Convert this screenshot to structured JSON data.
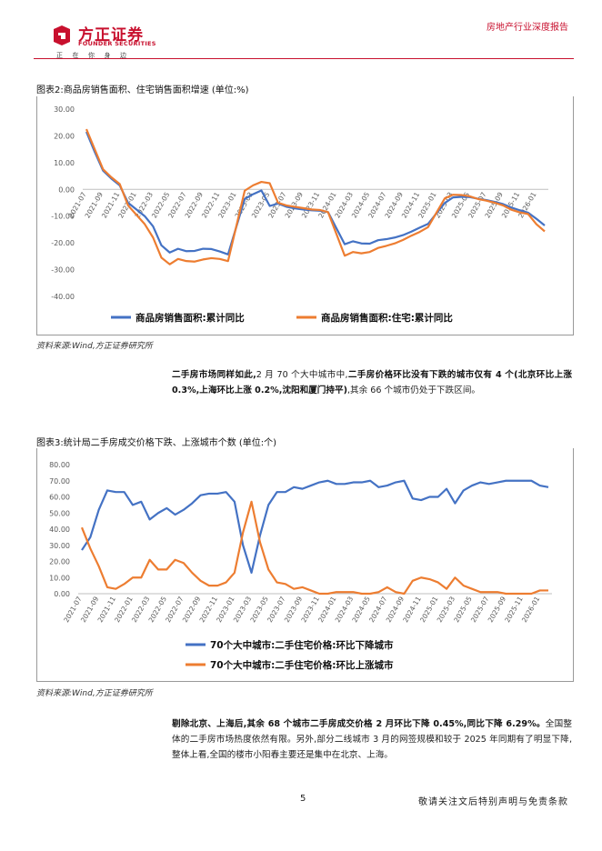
{
  "header": {
    "logo_name": "方正证券",
    "logo_en": "FOUNDER SECURITIES",
    "slogan": "正在你身边",
    "report_type": "房地产行业深度报告"
  },
  "figure2": {
    "title": "图表2:商品房销售面积、住宅销售面积增速 (单位:%)",
    "source": "资料来源:Wind,方正证券研究所"
  },
  "para1": {
    "bold1": "二手房市场同样如此,",
    "text1": "2 月 70 个大中城市中,",
    "bold2": "二手房价格环比没有下跌的城市仅有 4 个(北京环比上涨 0.3%,上海环比上涨 0.2%,沈阳和厦门持平)",
    "text2": ",其余 66 个城市仍处于下跌区间。"
  },
  "figure3": {
    "title": "图表3:统计局二手房成交价格下跌、上涨城市个数 (单位:个)",
    "source": "资料来源:Wind,方正证券研究所"
  },
  "para2": {
    "bold1": "剔除北京、上海后,其余 68 个城市二手房成交价格 2 月环比下降 0.45%,同比下降 6.29%。",
    "text1": "全国整体的二手房市场热度依然有限。另外,部分二线城市 3 月的网签规模和较于 2025 年同期有了明显下降,整体上看,全国的楼市小阳春主要还是集中在北京、上海。"
  },
  "footer": {
    "page_number": "5",
    "disclaimer": "敬请关注文后特别声明与免责条款"
  },
  "chart_data": [
    {
      "type": "line",
      "title": "商品房销售面积、住宅销售面积增速 (单位:%)",
      "xlabel": "",
      "ylabel": "",
      "ylim": [
        -40,
        30
      ],
      "yticks": [
        "30.00",
        "20.00",
        "10.00",
        "0.00",
        "-10.00",
        "-20.00",
        "-30.00",
        "-40.00"
      ],
      "categories": [
        "2021-07",
        "2021-08",
        "2021-09",
        "2021-10",
        "2021-11",
        "2021-12",
        "2022-01",
        "2022-02",
        "2022-03",
        "2022-04",
        "2022-05",
        "2022-06",
        "2022-07",
        "2022-08",
        "2022-09",
        "2022-10",
        "2022-11",
        "2022-12",
        "2023-01",
        "2023-02",
        "2023-03",
        "2023-04",
        "2023-05",
        "2023-06",
        "2023-07",
        "2023-08",
        "2023-09",
        "2023-10",
        "2023-11",
        "2023-12",
        "2024-01",
        "2024-02",
        "2024-03",
        "2024-04",
        "2024-05",
        "2024-06",
        "2024-07",
        "2024-08",
        "2024-09",
        "2024-10",
        "2024-11",
        "2024-12",
        "2025-01",
        "2025-02",
        "2025-03",
        "2025-04",
        "2025-05",
        "2025-06",
        "2025-07",
        "2025-08",
        "2025-09",
        "2025-10",
        "2025-11",
        "2025-12",
        "2026-01",
        "2026-02"
      ],
      "x_tick_labels": [
        "2021-07",
        "2021-09",
        "2021-11",
        "2022-01",
        "2022-03",
        "2022-05",
        "2022-07",
        "2022-09",
        "2022-11",
        "2023-01",
        "2023-03",
        "2023-05",
        "2023-07",
        "2023-09",
        "2023-11",
        "2024-01",
        "2024-03",
        "2024-05",
        "2024-07",
        "2024-09",
        "2024-11",
        "2025-01",
        "2025-03",
        "2025-05",
        "2025-07",
        "2025-09",
        "2025-11",
        "2026-01"
      ],
      "series": [
        {
          "name": "商品房销售面积:累计同比",
          "color": "#4472c4",
          "values": [
            21.5,
            14.0,
            7.0,
            4.0,
            1.5,
            -5.0,
            null,
            -10.0,
            -13.8,
            -20.9,
            -23.6,
            -22.2,
            -23.1,
            -23.0,
            -22.2,
            -22.3,
            -23.2,
            -24.3,
            null,
            -3.6,
            -1.8,
            -0.4,
            -6.2,
            -5.3,
            -6.5,
            -7.1,
            -7.5,
            -7.8,
            -8.0,
            -8.5,
            null,
            -20.5,
            -19.4,
            -20.2,
            -20.3,
            -19.0,
            -18.6,
            -18.0,
            -17.1,
            -15.8,
            -14.3,
            -12.9,
            null,
            -5.1,
            -3.0,
            -2.8,
            -2.9,
            -3.5,
            -4.0,
            -4.7,
            -5.5,
            -6.8,
            -7.8,
            -8.7,
            -11.0,
            -13.5
          ]
        },
        {
          "name": "商品房销售面积:住宅:累计同比",
          "color": "#ed7d31",
          "values": [
            22.5,
            15.0,
            7.5,
            4.5,
            2.0,
            -6.0,
            null,
            -13.0,
            -18.0,
            -25.5,
            -28.0,
            -26.0,
            -26.8,
            -27.0,
            -26.2,
            -25.7,
            -26.0,
            -26.8,
            null,
            -0.5,
            1.5,
            2.8,
            2.3,
            -5.0,
            -6.0,
            -6.5,
            -7.0,
            -7.5,
            -7.7,
            -8.5,
            null,
            -24.8,
            -23.4,
            -23.9,
            -23.4,
            -21.9,
            -21.1,
            -20.2,
            -18.9,
            -17.3,
            -15.9,
            -14.1,
            null,
            -3.4,
            -2.0,
            -2.1,
            -2.6,
            -3.6,
            -4.2,
            -5.0,
            -6.0,
            -7.6,
            -8.6,
            -9.2,
            -13.0,
            -15.7
          ]
        }
      ]
    },
    {
      "type": "line",
      "title": "统计局二手房成交价格下跌、上涨城市个数 (单位:个)",
      "xlabel": "",
      "ylabel": "",
      "ylim": [
        0,
        80
      ],
      "yticks": [
        "80.00",
        "70.00",
        "60.00",
        "50.00",
        "40.00",
        "30.00",
        "20.00",
        "10.00",
        "0.00"
      ],
      "categories": [
        "2021-07",
        "2021-08",
        "2021-09",
        "2021-10",
        "2021-11",
        "2021-12",
        "2022-01",
        "2022-02",
        "2022-03",
        "2022-04",
        "2022-05",
        "2022-06",
        "2022-07",
        "2022-08",
        "2022-09",
        "2022-10",
        "2022-11",
        "2022-12",
        "2023-01",
        "2023-02",
        "2023-03",
        "2023-04",
        "2023-05",
        "2023-06",
        "2023-07",
        "2023-08",
        "2023-09",
        "2023-10",
        "2023-11",
        "2023-12",
        "2024-01",
        "2024-02",
        "2024-03",
        "2024-04",
        "2024-05",
        "2024-06",
        "2024-07",
        "2024-08",
        "2024-09",
        "2024-10",
        "2024-11",
        "2024-12",
        "2025-01",
        "2025-02",
        "2025-03",
        "2025-04",
        "2025-05",
        "2025-06",
        "2025-07",
        "2025-08",
        "2025-09",
        "2025-10",
        "2025-11",
        "2025-12",
        "2026-01",
        "2026-02"
      ],
      "x_tick_labels": [
        "2021-07",
        "2021-09",
        "2021-11",
        "2022-01",
        "2022-03",
        "2022-05",
        "2022-07",
        "2022-09",
        "2022-11",
        "2023-01",
        "2023-03",
        "2023-05",
        "2023-07",
        "2023-09",
        "2023-11",
        "2024-01",
        "2024-03",
        "2024-05",
        "2024-07",
        "2024-09",
        "2024-11",
        "2025-01",
        "2025-03",
        "2025-05",
        "2025-07",
        "2025-09",
        "2025-11",
        "2026-01"
      ],
      "series": [
        {
          "name": "70个大中城市:二手住宅价格:环比下降城市",
          "color": "#4472c4",
          "values": [
            27,
            35,
            52,
            64,
            63,
            63,
            55,
            57,
            46,
            50,
            53,
            49,
            52,
            56,
            61,
            62,
            62,
            63,
            57,
            30,
            13,
            36,
            55,
            63,
            63,
            66,
            65,
            67,
            69,
            70,
            68,
            68,
            69,
            69,
            70,
            66,
            67,
            69,
            70,
            59,
            58,
            60,
            60,
            65,
            56,
            64,
            67,
            69,
            68,
            69,
            70,
            70,
            70,
            70,
            67,
            66
          ]
        },
        {
          "name": "70个大中城市:二手住宅价格:环比上涨城市",
          "color": "#ed7d31",
          "values": [
            41,
            28,
            17,
            4,
            3,
            6,
            10,
            10,
            21,
            15,
            15,
            21,
            19,
            13,
            8,
            5,
            5,
            7,
            13,
            38,
            57,
            32,
            15,
            7,
            6,
            3,
            4,
            2,
            0,
            0,
            1,
            1,
            1,
            0,
            0,
            1,
            4,
            1,
            0,
            8,
            10,
            9,
            7,
            3,
            10,
            5,
            3,
            1,
            1,
            1,
            0,
            0,
            0,
            0,
            2,
            2
          ]
        }
      ]
    }
  ]
}
